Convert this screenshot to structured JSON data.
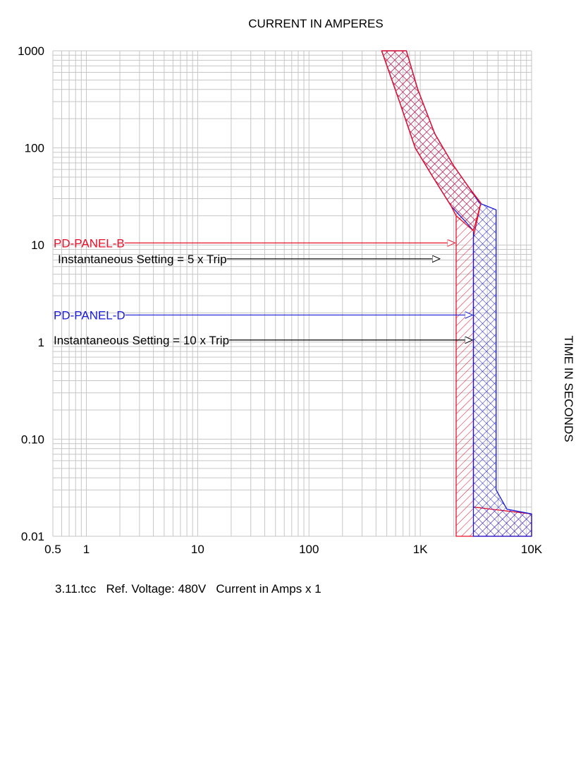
{
  "chart_data": {
    "type": "line",
    "title": "CURRENT IN AMPERES",
    "xlabel": "CURRENT IN AMPERES",
    "ylabel": "TIME IN SECONDS",
    "x_scale": "log",
    "y_scale": "log",
    "xlim": [
      0.5,
      10000
    ],
    "ylim": [
      0.01,
      1000
    ],
    "grid": true,
    "x_ticks": [
      {
        "value": 0.5,
        "label": "0.5"
      },
      {
        "value": 1,
        "label": "1"
      },
      {
        "value": 10,
        "label": "10"
      },
      {
        "value": 100,
        "label": "100"
      },
      {
        "value": 1000,
        "label": "1K"
      },
      {
        "value": 10000,
        "label": "10K"
      }
    ],
    "y_ticks": [
      {
        "value": 0.01,
        "label": "0.01"
      },
      {
        "value": 0.1,
        "label": "0.10"
      },
      {
        "value": 1,
        "label": "1"
      },
      {
        "value": 10,
        "label": "10"
      },
      {
        "value": 100,
        "label": "100"
      },
      {
        "value": 1000,
        "label": "1000"
      }
    ],
    "series": [
      {
        "name": "PD-PANEL-B",
        "color": "#e8102a",
        "hatch": "diagonal",
        "band": {
          "x": [
            450,
            650,
            900,
            1300,
            1900,
            2100,
            2100,
            2800,
            3400,
            10000,
            10000,
            3000,
            3000,
            3500,
            2700,
            2000,
            1350,
            950,
            750,
            450
          ],
          "y": [
            1000,
            300,
            100,
            50,
            25,
            20,
            0.01,
            0.01,
            0.01,
            0.01,
            0.017,
            0.02,
            12,
            27,
            40,
            65,
            140,
            400,
            1000,
            1000
          ]
        }
      },
      {
        "name": "PD-PANEL-D",
        "color": "#1a1ad6",
        "hatch": "crosshatch",
        "band": {
          "x": [
            450,
            650,
            900,
            1300,
            1900,
            2600,
            3000,
            3000,
            10000,
            10000,
            6000,
            4800,
            4800,
            3400,
            2700,
            2000,
            1350,
            950,
            750,
            450
          ],
          "y": [
            1000,
            300,
            100,
            50,
            25,
            17,
            14,
            0.01,
            0.01,
            0.017,
            0.019,
            0.03,
            23,
            27,
            40,
            65,
            140,
            400,
            1000,
            1000
          ]
        }
      }
    ],
    "annotations": [
      {
        "text": "PD-PANEL-B",
        "color": "#e8102a",
        "y": 10.5,
        "arrow_to_x": 2050
      },
      {
        "text": "Instantaneous Setting = 5 x Trip",
        "color": "#000000",
        "y": 7.2,
        "arrow_to_x": 1500
      },
      {
        "text": "PD-PANEL-D",
        "color": "#1a1ad6",
        "y": 1.9,
        "arrow_to_x": 2950
      },
      {
        "text": "Instantaneous Setting = 10 x Trip",
        "color": "#000000",
        "y": 1.05,
        "arrow_to_x": 2950
      }
    ],
    "footer": "3.11.tcc   Ref. Voltage: 480V   Current in Amps x 1"
  }
}
